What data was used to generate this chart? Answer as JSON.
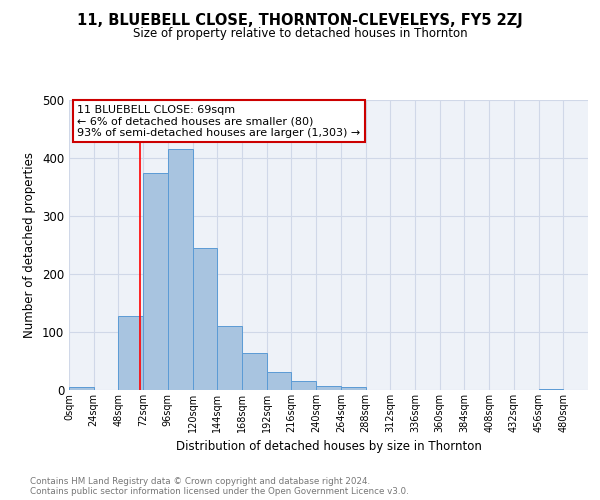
{
  "title": "11, BLUEBELL CLOSE, THORNTON-CLEVELEYS, FY5 2ZJ",
  "subtitle": "Size of property relative to detached houses in Thornton",
  "xlabel": "Distribution of detached houses by size in Thornton",
  "ylabel": "Number of detached properties",
  "footnote1": "Contains HM Land Registry data © Crown copyright and database right 2024.",
  "footnote2": "Contains public sector information licensed under the Open Government Licence v3.0.",
  "bar_edges": [
    0,
    24,
    48,
    72,
    96,
    120,
    144,
    168,
    192,
    216,
    240,
    264,
    288,
    312,
    336,
    360,
    384,
    408,
    432,
    456,
    480
  ],
  "bar_heights": [
    5,
    0,
    128,
    375,
    415,
    245,
    110,
    63,
    31,
    15,
    7,
    5,
    0,
    0,
    0,
    0,
    0,
    0,
    0,
    2
  ],
  "bar_color": "#a8c4e0",
  "bar_edge_color": "#5b9bd5",
  "grid_color": "#d0d8e8",
  "bg_color": "#eef2f8",
  "red_line_x": 69,
  "annotation_text": "11 BLUEBELL CLOSE: 69sqm\n← 6% of detached houses are smaller (80)\n93% of semi-detached houses are larger (1,303) →",
  "annotation_box_color": "#ffffff",
  "annotation_border_color": "#cc0000",
  "ylim": [
    0,
    500
  ],
  "xlim": [
    0,
    504
  ],
  "xtick_labels": [
    "0sqm",
    "24sqm",
    "48sqm",
    "72sqm",
    "96sqm",
    "120sqm",
    "144sqm",
    "168sqm",
    "192sqm",
    "216sqm",
    "240sqm",
    "264sqm",
    "288sqm",
    "312sqm",
    "336sqm",
    "360sqm",
    "384sqm",
    "408sqm",
    "432sqm",
    "456sqm",
    "480sqm"
  ],
  "xtick_positions": [
    0,
    24,
    48,
    72,
    96,
    120,
    144,
    168,
    192,
    216,
    240,
    264,
    288,
    312,
    336,
    360,
    384,
    408,
    432,
    456,
    480
  ]
}
